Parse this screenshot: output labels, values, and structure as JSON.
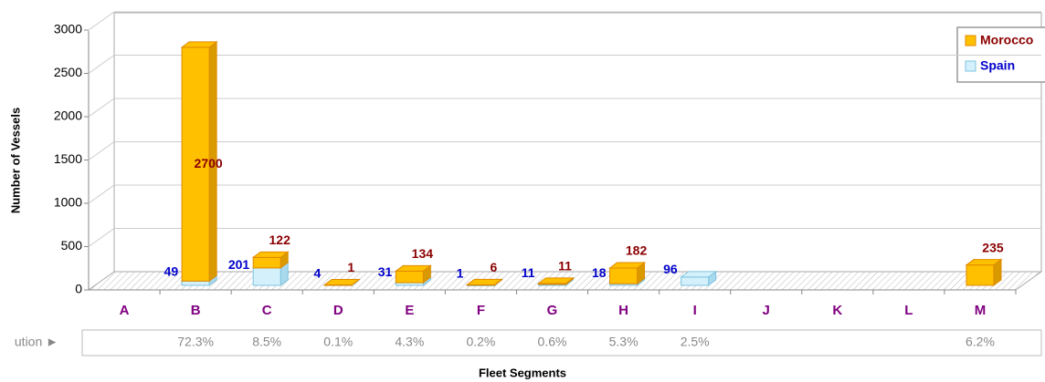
{
  "chart_data": {
    "type": "bar3d_stacked",
    "xlabel": "Fleet Segments",
    "ylabel": "Number of Vessels",
    "categories": [
      "A",
      "B",
      "C",
      "D",
      "E",
      "F",
      "G",
      "H",
      "I",
      "J",
      "K",
      "L",
      "M"
    ],
    "series": [
      {
        "name": "Spain",
        "color": "#d4f1fb",
        "values": [
          null,
          49,
          201,
          4,
          31,
          1,
          11,
          18,
          96,
          null,
          null,
          null,
          null
        ]
      },
      {
        "name": "Morocco",
        "color": "#ffc000",
        "values": [
          null,
          2700,
          122,
          1,
          134,
          6,
          11,
          182,
          null,
          null,
          null,
          null,
          235
        ]
      }
    ],
    "ylim": [
      0,
      3000
    ],
    "yticks": [
      0,
      500,
      1000,
      1500,
      2000,
      2500,
      3000
    ],
    "grid": true,
    "legend": "upper right",
    "distribution": {
      "label": "ution ►",
      "values": [
        null,
        "72.3%",
        "8.5%",
        "0.1%",
        "4.3%",
        "0.2%",
        "0.6%",
        "5.3%",
        "2.5%",
        null,
        null,
        null,
        "6.2%"
      ]
    }
  }
}
